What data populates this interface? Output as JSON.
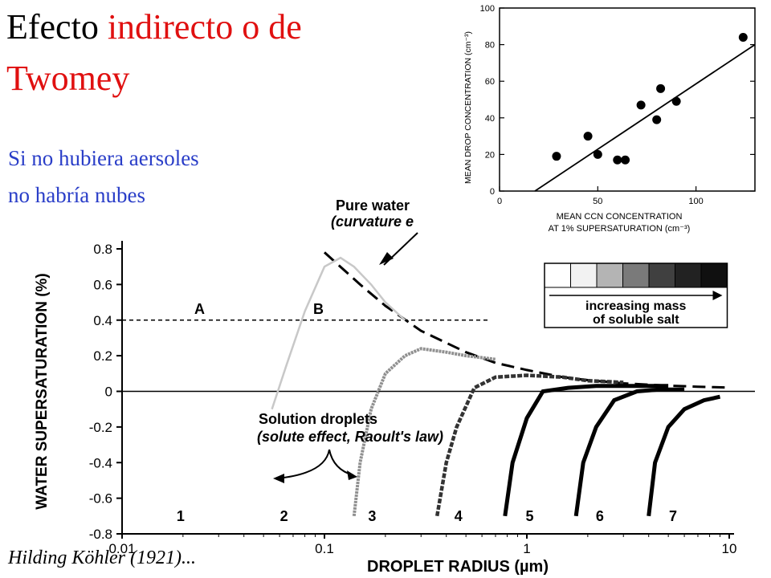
{
  "colors": {
    "title_black": "#000000",
    "title_red": "#e01010",
    "subtitle_blue": "#2a3ec8"
  },
  "slide": {
    "title_part1": "Efecto ",
    "title_part2": "indirecto o de",
    "title_line2": "Twomey",
    "subtitle_line1": "Si no hubiera aersoles",
    "subtitle_line2": "no habría nubes",
    "credit": "Hilding Köhler (1921)..."
  },
  "chart_data": [
    {
      "type": "line",
      "xlabel": "DROPLET RADIUS (µm)",
      "ylabel": "WATER SUPERSATURATION (%)",
      "xscale": "log",
      "xlim": [
        0.01,
        10
      ],
      "ylim": [
        -0.8,
        0.8
      ],
      "x_ticks": [
        "0.01",
        "0.1",
        "1",
        "10"
      ],
      "y_ticks": [
        "0.8",
        "0.6",
        "0.4",
        "0.2",
        "0",
        "-0.2",
        "-0.4",
        "-0.6",
        "-0.8"
      ],
      "annotations": {
        "pure_water_line1": "Pure water",
        "pure_water_line2": "(curvature e",
        "solution_line1": "Solution droplets",
        "solution_line2": "(solute effect, Raoult's law)",
        "legend_line1": "increasing mass",
        "legend_line2": "of soluble salt",
        "label_A": "A",
        "label_B": "B",
        "threshold_y": 0.4
      },
      "series": [
        {
          "name": "Pure water",
          "x": [
            0.1,
            0.15,
            0.2,
            0.3,
            0.5,
            0.7,
            1,
            1.5,
            2,
            3,
            5,
            7,
            10
          ],
          "y": [
            0.78,
            0.6,
            0.48,
            0.34,
            0.22,
            0.16,
            0.12,
            0.08,
            0.063,
            0.045,
            0.032,
            0.026,
            0.021
          ]
        },
        {
          "name": "1",
          "x": [],
          "y": []
        },
        {
          "name": "2",
          "x": [
            0.055,
            0.065,
            0.08,
            0.1,
            0.12,
            0.14,
            0.17,
            0.2,
            0.25
          ],
          "y": [
            -0.1,
            0.15,
            0.45,
            0.7,
            0.75,
            0.7,
            0.6,
            0.5,
            0.4
          ]
        },
        {
          "name": "3",
          "x": [
            0.14,
            0.15,
            0.17,
            0.2,
            0.25,
            0.3,
            0.4,
            0.5,
            0.7
          ],
          "y": [
            -0.7,
            -0.4,
            -0.1,
            0.1,
            0.2,
            0.24,
            0.22,
            0.2,
            0.18
          ]
        },
        {
          "name": "4",
          "x": [
            0.36,
            0.4,
            0.45,
            0.55,
            0.7,
            1,
            1.5,
            2,
            3
          ],
          "y": [
            -0.7,
            -0.4,
            -0.2,
            0.02,
            0.08,
            0.09,
            0.08,
            0.06,
            0.05
          ]
        },
        {
          "name": "5",
          "x": [
            0.78,
            0.85,
            1,
            1.2,
            1.6,
            2.2,
            3,
            5
          ],
          "y": [
            -0.7,
            -0.4,
            -0.15,
            0.0,
            0.02,
            0.03,
            0.03,
            0.03
          ]
        },
        {
          "name": "6",
          "x": [
            1.75,
            1.9,
            2.2,
            2.7,
            3.5,
            4.5,
            6
          ],
          "y": [
            -0.7,
            -0.4,
            -0.2,
            -0.05,
            0.0,
            0.01,
            0.01
          ]
        },
        {
          "name": "7",
          "x": [
            4.0,
            4.3,
            5.0,
            6.0,
            7.5,
            9.0
          ],
          "y": [
            -0.7,
            -0.4,
            -0.2,
            -0.1,
            -0.05,
            -0.03
          ]
        }
      ],
      "curve_labels": [
        "1",
        "2",
        "3",
        "4",
        "5",
        "6",
        "7"
      ],
      "curve_label_x": [
        0.02,
        0.055,
        0.15,
        0.4,
        0.9,
        2.0,
        4.6
      ]
    },
    {
      "type": "scatter",
      "xlabel_line1": "MEAN CCN CONCENTRATION",
      "xlabel_line2": "AT 1% SUPERSATURATION (cm⁻³)",
      "ylabel": "MEAN DROP CONCENTRATION (cm⁻³)",
      "xlim": [
        0,
        130
      ],
      "ylim": [
        0,
        100
      ],
      "x_ticks": [
        "0",
        "50",
        "100"
      ],
      "y_ticks": [
        "0",
        "20",
        "40",
        "60",
        "80",
        "100"
      ],
      "points": {
        "x": [
          29,
          45,
          50,
          60,
          64,
          72,
          80,
          82,
          90,
          124
        ],
        "y": [
          19,
          30,
          20,
          17,
          17,
          47,
          39,
          56,
          49,
          84
        ]
      },
      "fit_line": {
        "x": [
          18,
          130
        ],
        "y": [
          0,
          80
        ]
      }
    }
  ]
}
